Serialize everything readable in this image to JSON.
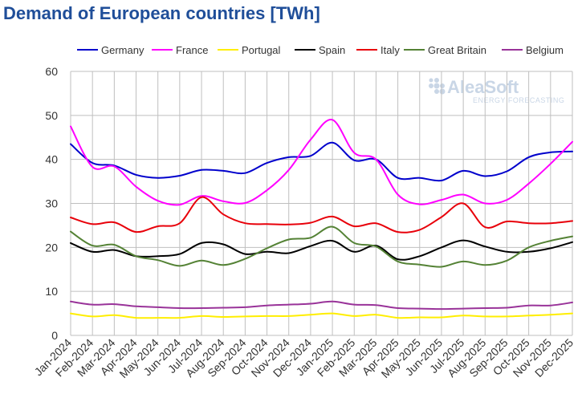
{
  "title": "Demand of European countries [TWh]",
  "watermark": {
    "brand": "AleaSoft",
    "tagline": "ENERGY FORECASTING"
  },
  "chart_data": {
    "type": "line",
    "title": "Demand of European countries [TWh]",
    "xlabel": "",
    "ylabel": "",
    "ylim": [
      0,
      60
    ],
    "yticks": [
      0,
      10,
      20,
      30,
      40,
      50,
      60
    ],
    "grid": true,
    "legend_position": "top",
    "categories": [
      "Jan-2024",
      "Feb-2024",
      "Mar-2024",
      "Apr-2024",
      "May-2024",
      "Jun-2024",
      "Jul-2024",
      "Aug-2024",
      "Sep-2024",
      "Oct-2024",
      "Nov-2024",
      "Dec-2024",
      "Jan-2025",
      "Feb-2025",
      "Mar-2025",
      "Apr-2025",
      "May-2025",
      "Jun-2025",
      "Jul-2025",
      "Aug-2025",
      "Sep-2025",
      "Oct-2025",
      "Nov-2025",
      "Dec-2025"
    ],
    "series": [
      {
        "name": "Germany",
        "color": "#0000cc",
        "values": [
          43.5,
          39.2,
          38.6,
          36.5,
          35.8,
          36.3,
          37.6,
          37.4,
          36.9,
          39.2,
          40.5,
          40.8,
          43.8,
          39.8,
          40.0,
          35.8,
          35.8,
          35.2,
          37.4,
          36.2,
          37.3,
          40.5,
          41.6,
          41.8
        ]
      },
      {
        "name": "France",
        "color": "#ff00ff",
        "values": [
          47.5,
          38.3,
          38.4,
          33.8,
          30.6,
          29.7,
          31.7,
          30.5,
          30.1,
          33.0,
          37.6,
          44.5,
          49.0,
          41.5,
          40.0,
          32.0,
          29.8,
          30.8,
          32.0,
          30.0,
          30.8,
          34.5,
          39.0,
          44.0
        ]
      },
      {
        "name": "Portugal",
        "color": "#ffee00",
        "values": [
          5.0,
          4.3,
          4.6,
          4.0,
          4.0,
          4.0,
          4.4,
          4.2,
          4.3,
          4.4,
          4.4,
          4.7,
          5.0,
          4.4,
          4.7,
          4.0,
          4.1,
          4.1,
          4.5,
          4.3,
          4.3,
          4.5,
          4.7,
          5.0
        ]
      },
      {
        "name": "Spain",
        "color": "#000000",
        "values": [
          21.0,
          19.0,
          19.4,
          18.0,
          18.0,
          18.5,
          21.0,
          20.7,
          18.5,
          19.0,
          18.7,
          20.3,
          21.5,
          19.0,
          20.4,
          17.3,
          18.0,
          20.0,
          21.6,
          20.2,
          19.0,
          19.0,
          19.8,
          21.2
        ]
      },
      {
        "name": "Italy",
        "color": "#e8000a",
        "values": [
          26.8,
          25.3,
          25.7,
          23.5,
          24.8,
          25.5,
          31.4,
          27.5,
          25.5,
          25.3,
          25.2,
          25.6,
          27.0,
          24.8,
          25.5,
          23.5,
          24.0,
          26.9,
          30.0,
          24.6,
          25.9,
          25.5,
          25.5,
          26.0
        ]
      },
      {
        "name": "Great Britain",
        "color": "#548235",
        "values": [
          23.6,
          20.4,
          20.6,
          18.0,
          17.1,
          15.8,
          17.0,
          16.0,
          17.4,
          19.8,
          21.8,
          22.2,
          24.7,
          21.0,
          20.2,
          16.8,
          16.1,
          15.6,
          16.8,
          16.0,
          17.0,
          20.0,
          21.5,
          22.5
        ]
      },
      {
        "name": "Belgium",
        "color": "#993399",
        "values": [
          7.7,
          7.0,
          7.1,
          6.6,
          6.4,
          6.2,
          6.2,
          6.3,
          6.4,
          6.8,
          7.0,
          7.2,
          7.7,
          7.0,
          6.9,
          6.2,
          6.1,
          6.0,
          6.1,
          6.2,
          6.3,
          6.8,
          6.8,
          7.5
        ]
      }
    ]
  }
}
